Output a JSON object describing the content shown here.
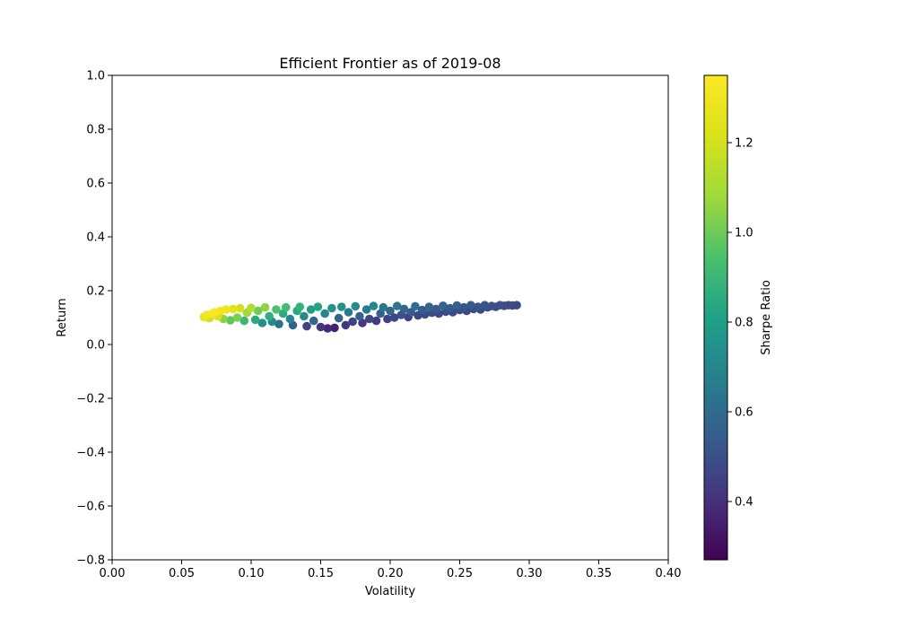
{
  "chart_data": {
    "type": "scatter",
    "title": "Efficient Frontier as of 2019-08",
    "xlabel": "Volatility",
    "ylabel": "Return",
    "xlim": [
      0.0,
      0.4
    ],
    "ylim": [
      -0.8,
      1.0
    ],
    "xticks": [
      "0.00",
      "0.05",
      "0.10",
      "0.15",
      "0.20",
      "0.25",
      "0.30",
      "0.35",
      "0.40"
    ],
    "yticks": [
      "−0.8",
      "−0.6",
      "−0.4",
      "−0.2",
      "0.0",
      "0.2",
      "0.4",
      "0.6",
      "0.8",
      "1.0"
    ],
    "colorbar": {
      "label": "Sharpe Ratio",
      "range": [
        0.27,
        1.35
      ],
      "ticks": [
        "0.4",
        "0.6",
        "0.8",
        "1.0",
        "1.2"
      ],
      "colormap": "viridis"
    },
    "grid": false,
    "series": [
      {
        "points": [
          [
            0.066,
            0.102,
            1.28
          ],
          [
            0.068,
            0.11,
            1.32
          ],
          [
            0.07,
            0.098,
            1.2
          ],
          [
            0.072,
            0.115,
            1.33
          ],
          [
            0.074,
            0.12,
            1.34
          ],
          [
            0.076,
            0.105,
            1.22
          ],
          [
            0.078,
            0.125,
            1.3
          ],
          [
            0.08,
            0.095,
            1.05
          ],
          [
            0.082,
            0.13,
            1.29
          ],
          [
            0.085,
            0.09,
            0.98
          ],
          [
            0.087,
            0.132,
            1.25
          ],
          [
            0.09,
            0.1,
            1.02
          ],
          [
            0.092,
            0.135,
            1.2
          ],
          [
            0.095,
            0.088,
            0.9
          ],
          [
            0.097,
            0.118,
            1.08
          ],
          [
            0.1,
            0.136,
            1.12
          ],
          [
            0.103,
            0.092,
            0.85
          ],
          [
            0.105,
            0.125,
            1.0
          ],
          [
            0.108,
            0.08,
            0.74
          ],
          [
            0.11,
            0.138,
            1.05
          ],
          [
            0.113,
            0.105,
            0.86
          ],
          [
            0.115,
            0.085,
            0.72
          ],
          [
            0.118,
            0.13,
            0.95
          ],
          [
            0.12,
            0.076,
            0.62
          ],
          [
            0.123,
            0.115,
            0.85
          ],
          [
            0.125,
            0.138,
            0.93
          ],
          [
            0.128,
            0.095,
            0.7
          ],
          [
            0.13,
            0.072,
            0.55
          ],
          [
            0.133,
            0.125,
            0.84
          ],
          [
            0.135,
            0.14,
            0.88
          ],
          [
            0.138,
            0.105,
            0.72
          ],
          [
            0.14,
            0.068,
            0.47
          ],
          [
            0.143,
            0.13,
            0.8
          ],
          [
            0.145,
            0.088,
            0.58
          ],
          [
            0.148,
            0.14,
            0.82
          ],
          [
            0.15,
            0.065,
            0.42
          ],
          [
            0.153,
            0.115,
            0.7
          ],
          [
            0.155,
            0.06,
            0.38
          ],
          [
            0.158,
            0.135,
            0.76
          ],
          [
            0.16,
            0.062,
            0.36
          ],
          [
            0.163,
            0.098,
            0.58
          ],
          [
            0.165,
            0.14,
            0.76
          ],
          [
            0.168,
            0.072,
            0.42
          ],
          [
            0.17,
            0.12,
            0.66
          ],
          [
            0.173,
            0.085,
            0.46
          ],
          [
            0.175,
            0.142,
            0.73
          ],
          [
            0.178,
            0.105,
            0.56
          ],
          [
            0.18,
            0.08,
            0.42
          ],
          [
            0.183,
            0.13,
            0.66
          ],
          [
            0.185,
            0.095,
            0.48
          ],
          [
            0.188,
            0.143,
            0.7
          ],
          [
            0.19,
            0.088,
            0.44
          ],
          [
            0.193,
            0.115,
            0.56
          ],
          [
            0.195,
            0.138,
            0.65
          ],
          [
            0.198,
            0.095,
            0.46
          ],
          [
            0.2,
            0.125,
            0.58
          ],
          [
            0.203,
            0.1,
            0.47
          ],
          [
            0.205,
            0.143,
            0.65
          ],
          [
            0.208,
            0.11,
            0.5
          ],
          [
            0.21,
            0.132,
            0.58
          ],
          [
            0.213,
            0.102,
            0.46
          ],
          [
            0.215,
            0.12,
            0.53
          ],
          [
            0.218,
            0.142,
            0.61
          ],
          [
            0.22,
            0.108,
            0.47
          ],
          [
            0.223,
            0.128,
            0.54
          ],
          [
            0.225,
            0.112,
            0.48
          ],
          [
            0.228,
            0.14,
            0.58
          ],
          [
            0.23,
            0.118,
            0.49
          ],
          [
            0.233,
            0.132,
            0.54
          ],
          [
            0.235,
            0.115,
            0.47
          ],
          [
            0.238,
            0.144,
            0.57
          ],
          [
            0.24,
            0.122,
            0.49
          ],
          [
            0.243,
            0.135,
            0.53
          ],
          [
            0.245,
            0.12,
            0.47
          ],
          [
            0.248,
            0.145,
            0.55
          ],
          [
            0.25,
            0.128,
            0.49
          ],
          [
            0.253,
            0.138,
            0.52
          ],
          [
            0.255,
            0.125,
            0.47
          ],
          [
            0.258,
            0.146,
            0.54
          ],
          [
            0.26,
            0.132,
            0.49
          ],
          [
            0.263,
            0.14,
            0.51
          ],
          [
            0.265,
            0.13,
            0.47
          ],
          [
            0.268,
            0.146,
            0.52
          ],
          [
            0.27,
            0.138,
            0.49
          ],
          [
            0.273,
            0.143,
            0.5
          ],
          [
            0.276,
            0.14,
            0.48
          ],
          [
            0.279,
            0.146,
            0.5
          ],
          [
            0.282,
            0.144,
            0.49
          ],
          [
            0.285,
            0.146,
            0.49
          ],
          [
            0.288,
            0.145,
            0.48
          ],
          [
            0.291,
            0.146,
            0.48
          ]
        ]
      }
    ]
  }
}
